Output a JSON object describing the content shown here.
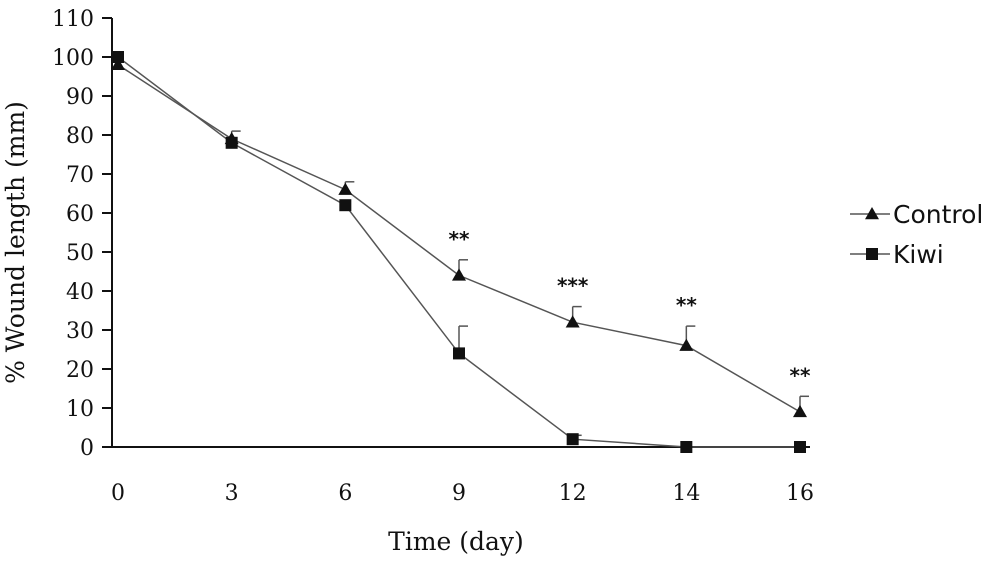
{
  "chart_data": {
    "type": "line",
    "title": "",
    "xlabel": "Time (day)",
    "ylabel": "% Wound length (mm)",
    "x_categories": [
      "0",
      "3",
      "6",
      "9",
      "12",
      "14",
      "16"
    ],
    "y_ticks": [
      "110",
      "100",
      "90",
      "80",
      "70",
      "60",
      "50",
      "40",
      "30",
      "20",
      "10",
      "0"
    ],
    "ylim": [
      0,
      110
    ],
    "grid": false,
    "legend": "right",
    "series": [
      {
        "name": "Control",
        "marker": "triangle",
        "values": [
          98,
          79,
          66,
          44,
          32,
          26,
          9
        ],
        "error": [
          0,
          2,
          2,
          4,
          4,
          5,
          4
        ],
        "significance": [
          "",
          "",
          "",
          "**",
          "***",
          "**",
          "**"
        ]
      },
      {
        "name": "Kiwi",
        "marker": "square",
        "values": [
          100,
          78,
          62,
          24,
          2,
          0,
          0
        ],
        "error": [
          0,
          0,
          0,
          7,
          1,
          0,
          0
        ],
        "significance": [
          "",
          "",
          "",
          "",
          "",
          "",
          ""
        ]
      }
    ],
    "colors": {
      "line": "#555555",
      "marker": "#111111",
      "axis": "#111111"
    }
  }
}
